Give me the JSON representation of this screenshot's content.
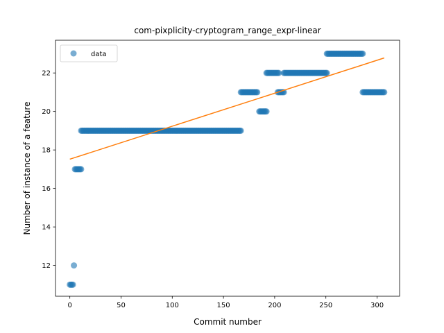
{
  "chart_data": {
    "type": "scatter",
    "title": "com-pixplicity-cryptogram_range_expr-linear",
    "xlabel": "Commit number",
    "ylabel": "Number of instance of a feature",
    "xlim": [
      -14,
      322
    ],
    "ylim": [
      10.4,
      23.7
    ],
    "xticks": [
      0,
      50,
      100,
      150,
      200,
      250,
      300
    ],
    "yticks": [
      12,
      14,
      16,
      18,
      20,
      22
    ],
    "grid": false,
    "legend": {
      "placement": "top-left",
      "entries": [
        {
          "label": "data"
        }
      ]
    },
    "colors": {
      "data": "#1f77b4",
      "fit": "#ff7f0e"
    },
    "series": [
      {
        "name": "data",
        "kind": "points",
        "segments": [
          {
            "x_start": 0,
            "x_end": 3,
            "y": 11
          },
          {
            "x_start": 4,
            "x_end": 4,
            "y": 12
          },
          {
            "x_start": 5,
            "x_end": 11,
            "y": 17
          },
          {
            "x_start": 11,
            "x_end": 167,
            "y": 19
          },
          {
            "x_start": 167,
            "x_end": 183,
            "y": 21
          },
          {
            "x_start": 185,
            "x_end": 192,
            "y": 20
          },
          {
            "x_start": 192,
            "x_end": 204,
            "y": 22
          },
          {
            "x_start": 203,
            "x_end": 209,
            "y": 21
          },
          {
            "x_start": 209,
            "x_end": 251,
            "y": 22
          },
          {
            "x_start": 251,
            "x_end": 286,
            "y": 23
          },
          {
            "x_start": 286,
            "x_end": 307,
            "y": 21
          }
        ]
      },
      {
        "name": "",
        "kind": "line",
        "x": [
          0,
          307
        ],
        "y": [
          17.52,
          22.78
        ]
      }
    ]
  }
}
